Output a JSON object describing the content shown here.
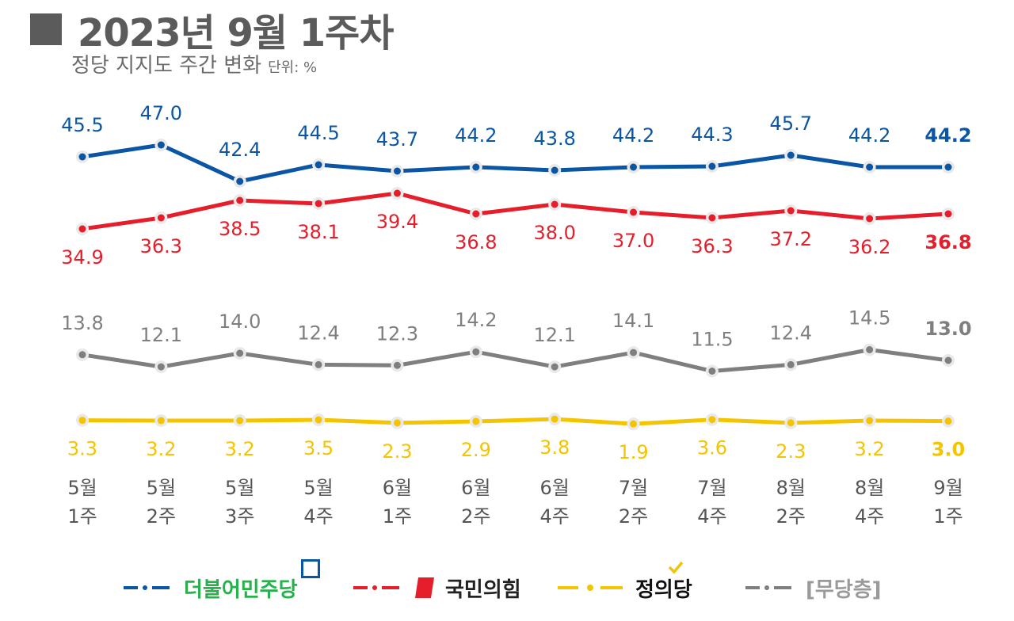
{
  "title": "2023년 9월 1주차",
  "subtitle": "정당 지지도 주간 변화",
  "unit": "단위: %",
  "legend": {
    "minjoo": "더불어민주당",
    "ppp": "국민의힘",
    "justice": "정의당",
    "none": "[무당층]"
  },
  "chart_data": {
    "type": "line",
    "categories": [
      [
        "5월",
        "1주"
      ],
      [
        "5월",
        "2주"
      ],
      [
        "5월",
        "3주"
      ],
      [
        "5월",
        "4주"
      ],
      [
        "6월",
        "1주"
      ],
      [
        "6월",
        "2주"
      ],
      [
        "6월",
        "4주"
      ],
      [
        "7월",
        "2주"
      ],
      [
        "7월",
        "4주"
      ],
      [
        "8월",
        "2주"
      ],
      [
        "8월",
        "4주"
      ],
      [
        "9월",
        "1주"
      ]
    ],
    "series": [
      {
        "name": "더불어민주당",
        "key": "minjoo",
        "color": "#0b56a4",
        "values": [
          45.5,
          47.0,
          42.4,
          44.5,
          43.7,
          44.2,
          43.8,
          44.2,
          44.3,
          45.7,
          44.2,
          44.2
        ],
        "label_pos": "above"
      },
      {
        "name": "국민의힘",
        "key": "ppp",
        "color": "#e61e2b",
        "values": [
          34.9,
          36.3,
          38.5,
          38.1,
          39.4,
          36.8,
          38.0,
          37.0,
          36.3,
          37.2,
          36.2,
          36.8
        ],
        "label_pos": "below"
      },
      {
        "name": "[무당층]",
        "key": "none",
        "color": "#7f7f7f",
        "values": [
          13.8,
          12.1,
          14.0,
          12.4,
          12.3,
          14.2,
          12.1,
          14.1,
          11.5,
          12.4,
          14.5,
          13.0
        ],
        "label_pos": "above"
      },
      {
        "name": "정의당",
        "key": "justice",
        "color": "#f5c400",
        "values": [
          3.3,
          3.2,
          3.2,
          3.5,
          2.3,
          2.9,
          3.8,
          1.9,
          3.6,
          2.3,
          3.2,
          3.0
        ],
        "label_pos": "below"
      }
    ],
    "last_bold": true
  }
}
